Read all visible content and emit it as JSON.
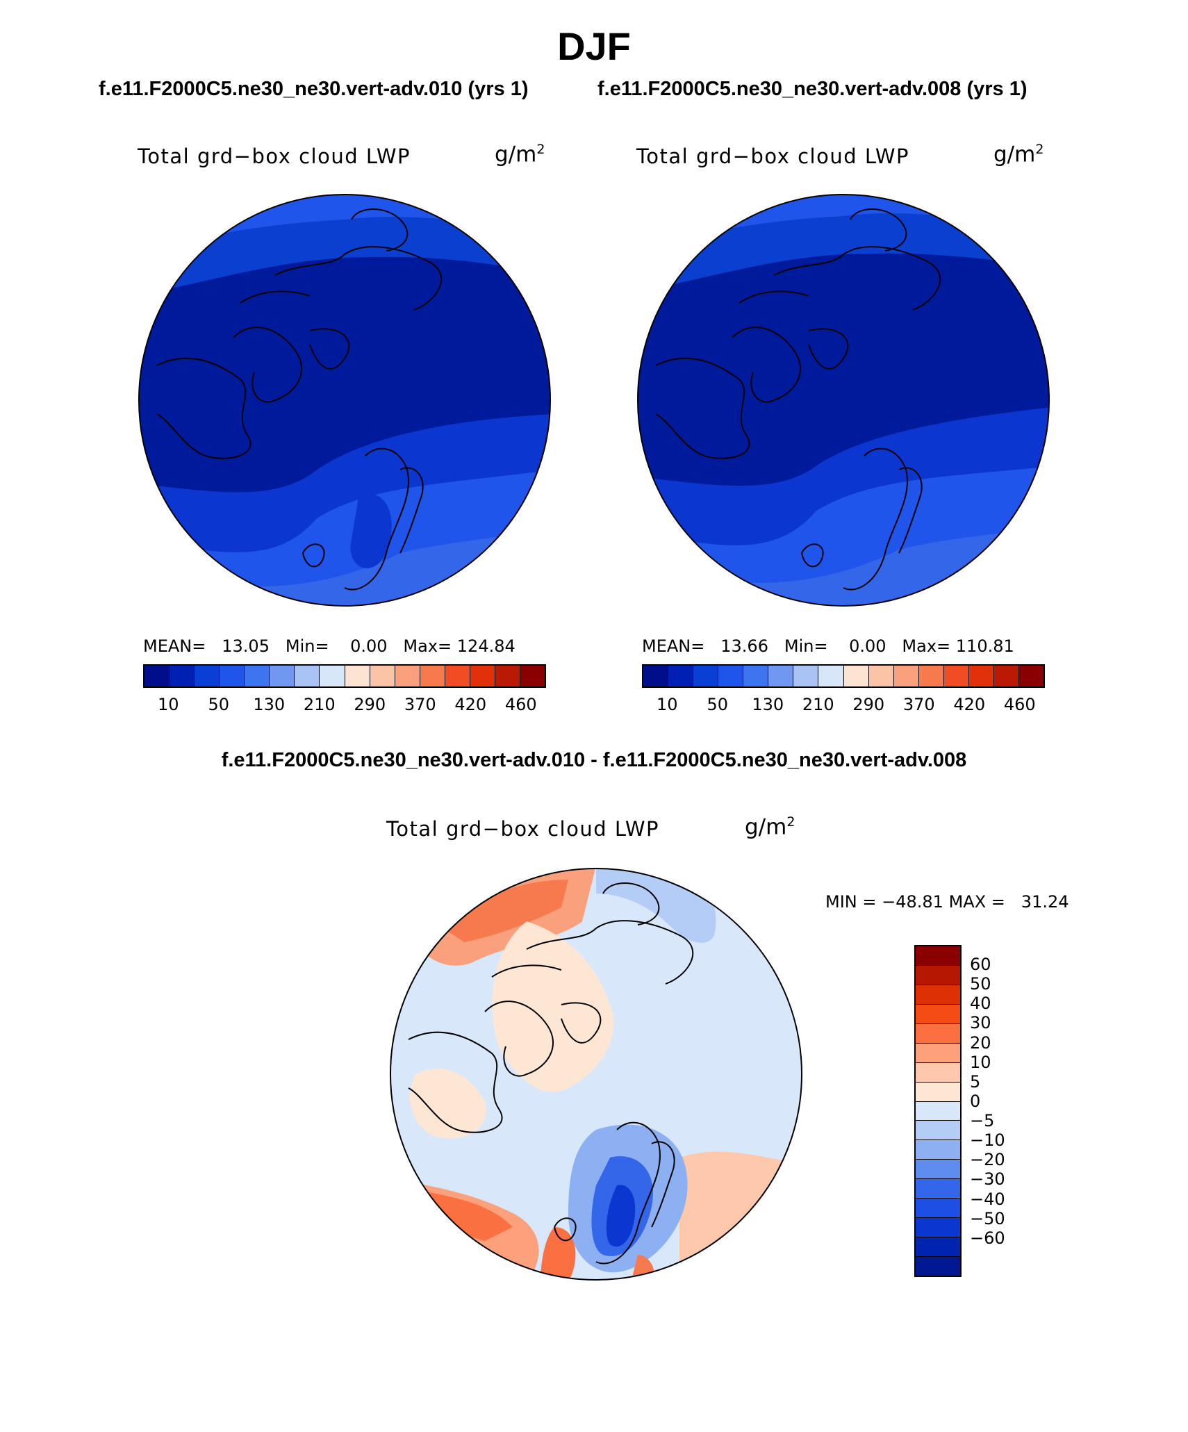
{
  "season": "DJF",
  "cases": {
    "left_title": "f.e11.F2000C5.ne30_ne30.vert-adv.010 (yrs 1)",
    "right_title": "f.e11.F2000C5.ne30_ne30.vert-adv.008 (yrs 1)",
    "diff_title": "f.e11.F2000C5.ne30_ne30.vert-adv.010 - f.e11.F2000C5.ne30_ne30.vert-adv.008"
  },
  "variable": {
    "label": "Total grd−box cloud LWP",
    "units_base": "g/m",
    "units_exp": "2"
  },
  "panels": [
    {
      "id": "left",
      "mean_label": "MEAN=",
      "mean": "13.05",
      "min_label": "Min=",
      "min": "0.00",
      "max_label": "Max=",
      "max": "124.84"
    },
    {
      "id": "right",
      "mean_label": "MEAN=",
      "mean": "13.66",
      "min_label": "Min=",
      "min": "0.00",
      "max_label": "Max=",
      "max": "110.81"
    }
  ],
  "diff_stats": {
    "min_label": "MIN =",
    "min": "−48.81",
    "max_label": "MAX =",
    "max": "31.24"
  },
  "abs_colorbar": {
    "colors": [
      "#000e8c",
      "#0020b4",
      "#0a3fd6",
      "#1f55ea",
      "#3f74f0",
      "#7098f0",
      "#a9c3f4",
      "#d7e7f9",
      "#fde4d2",
      "#fcc4a6",
      "#fba07c",
      "#f77a4e",
      "#f24c24",
      "#e1300a",
      "#ba1a04",
      "#8a0000"
    ],
    "tick_labels": [
      "10",
      "50",
      "130",
      "210",
      "290",
      "370",
      "420",
      "460"
    ]
  },
  "diff_colorbar": {
    "colors": [
      "#8a0000",
      "#b51703",
      "#dd3105",
      "#f54c15",
      "#fb7040",
      "#fda07c",
      "#fdc8ac",
      "#fde6d4",
      "#d8e8fa",
      "#b4cdf6",
      "#8cb0f2",
      "#5e8cef",
      "#3466ea",
      "#1e4fe4",
      "#0b37d0",
      "#0023b0",
      "#001890"
    ],
    "tick_labels": [
      "60",
      "50",
      "40",
      "30",
      "20",
      "10",
      "5",
      "0",
      "−5",
      "−10",
      "−20",
      "−30",
      "−40",
      "−50",
      "−60"
    ]
  }
}
